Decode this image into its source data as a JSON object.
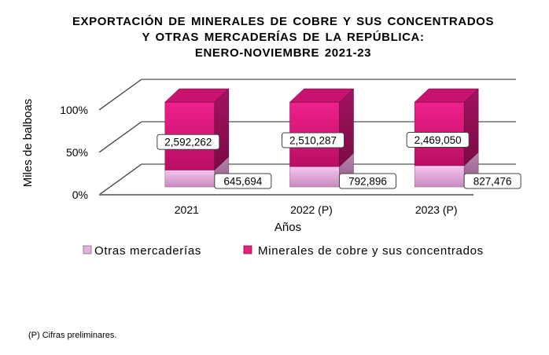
{
  "chart_data": {
    "type": "bar",
    "subtype": "stacked-100-percent-3d",
    "title_lines": [
      "EXPORTACIÓN  DE MINERALES  DE COBRE  Y  SUS CONCENTRADOS",
      "Y OTRAS MERCADERÍAS  DE LA  REPÚBLICA:",
      "ENERO-NOVIEMBRE  2021-23"
    ],
    "xlabel": "Años",
    "ylabel": "Miles de balboas",
    "categories": [
      "2021",
      "2022 (P)",
      "2023 (P)"
    ],
    "yticks": [
      "0%",
      "50%",
      "100%"
    ],
    "ylim": [
      0,
      100
    ],
    "grid": true,
    "legend_position": "bottom",
    "series": [
      {
        "name": "Otras mercaderías",
        "values": [
          645694,
          792896,
          827476
        ],
        "labels": [
          "645,694",
          "792,896",
          "827,476"
        ],
        "color": "#e8b0e0"
      },
      {
        "name": "Minerales de cobre y sus concentrados",
        "values": [
          2592262,
          2510287,
          2469050
        ],
        "labels": [
          "2,592,262",
          "2,510,287",
          "2,469,050"
        ],
        "color": "#e8237e"
      }
    ]
  },
  "footnote": "(P) Cifras preliminares."
}
